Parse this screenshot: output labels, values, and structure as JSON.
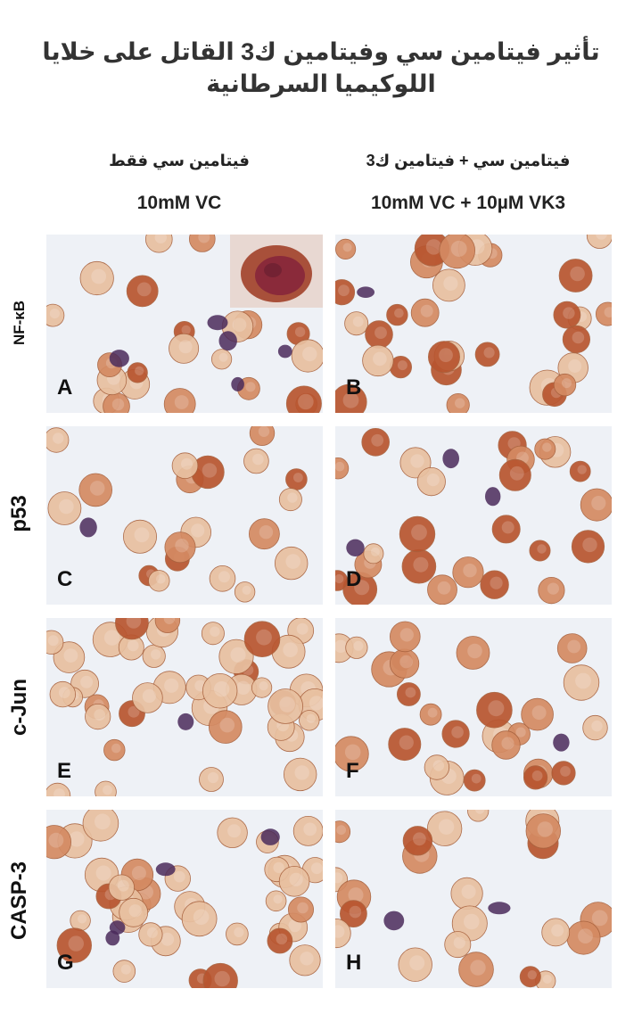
{
  "title_line1": "تأثير فيتامين سي وفيتامين ك3  القاتل على خلايا",
  "title_line2": "اللوكيميا السرطانية",
  "columns": [
    {
      "arabic": "فيتامين سي فقط",
      "english": "10mM VC"
    },
    {
      "arabic": "فيتامين سي + فيتامين ك3",
      "english": "10mM VC + 10µM VK3"
    }
  ],
  "rows": [
    "NF-κB",
    "p53",
    "c-Jun",
    "CASP-3"
  ],
  "panels": [
    "A",
    "B",
    "C",
    "D",
    "E",
    "F",
    "G",
    "H"
  ],
  "colors": {
    "background": "#eef1f6",
    "cell_light": "#e8c0a0",
    "cell_medium": "#d48a62",
    "cell_dark": "#b8552f",
    "nucleus": "#4a2a5a"
  }
}
